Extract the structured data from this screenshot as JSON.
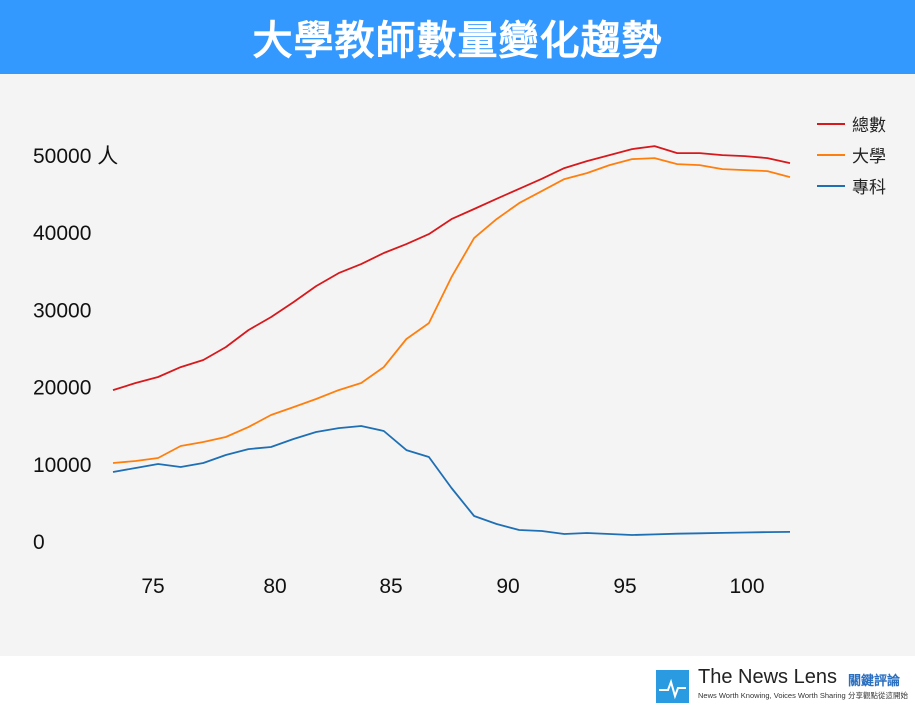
{
  "header": {
    "title": "大學教師數量變化趨勢"
  },
  "colors": {
    "header": "#3399ff",
    "total": "#d7191c",
    "university": "#ff7f0e",
    "junior_college": "#1f6fb4"
  },
  "chart_data": {
    "type": "line",
    "title": "大學教師數量變化趨勢",
    "xlabel": "",
    "ylabel": "人",
    "xlim": [
      73,
      103
    ],
    "ylim": [
      0,
      50000
    ],
    "grid": false,
    "legend": "top-right",
    "x_ticks": [
      75,
      80,
      85,
      90,
      95,
      100
    ],
    "y_ticks": [
      0,
      10000,
      20000,
      30000,
      40000,
      50000
    ],
    "y_tick_labels": [
      "0",
      "10000",
      "20000",
      "30000",
      "40000",
      "50000 人"
    ],
    "x": [
      73,
      74,
      75,
      76,
      77,
      78,
      79,
      80,
      81,
      82,
      83,
      84,
      85,
      86,
      87,
      88,
      89,
      90,
      91,
      92,
      93,
      94,
      95,
      96,
      97,
      98,
      99,
      100,
      101,
      102,
      103
    ],
    "series": [
      {
        "name": "總數",
        "color": "#d7191c",
        "values": [
          19550,
          20460,
          21240,
          22530,
          23440,
          25120,
          27320,
          29000,
          30950,
          33020,
          34700,
          35870,
          37300,
          38460,
          39760,
          41700,
          43000,
          44320,
          45620,
          46920,
          48300,
          49210,
          49990,
          50770,
          51150,
          50250,
          50250,
          49990,
          49860,
          49600,
          48950
        ]
      },
      {
        "name": "大學",
        "color": "#ff7f0e",
        "values": [
          10100,
          10360,
          10750,
          12300,
          12820,
          13470,
          14760,
          16320,
          17350,
          18390,
          19550,
          20460,
          22530,
          26160,
          28230,
          34190,
          39240,
          41700,
          43770,
          45320,
          46880,
          47660,
          48690,
          49470,
          49600,
          48820,
          48690,
          48170,
          48040,
          47920,
          47140
        ]
      },
      {
        "name": "專科",
        "color": "#1f6fb4",
        "values": [
          8940,
          9450,
          9970,
          9580,
          10100,
          11140,
          11910,
          12170,
          13210,
          14120,
          14630,
          14890,
          14250,
          11780,
          10880,
          6860,
          3240,
          2200,
          1420,
          1300,
          910,
          1040,
          910,
          780,
          850,
          950,
          1000,
          1050,
          1100,
          1150,
          1180
        ]
      }
    ]
  },
  "footer": {
    "brand": "The News Lens",
    "brand_cn": "關鍵評論",
    "tagline": "News Worth Knowing, Voices Worth Sharing",
    "tagline_cn": "分享觀點從這開始"
  }
}
